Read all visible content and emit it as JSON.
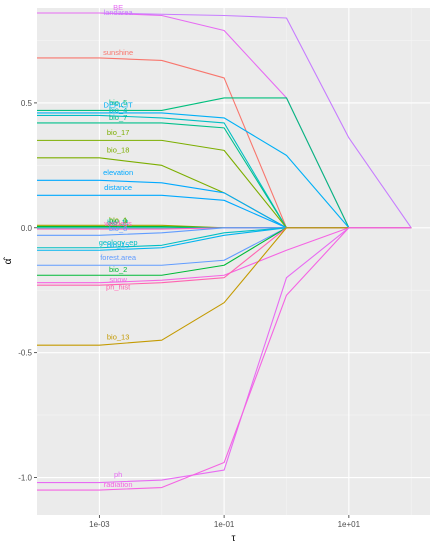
{
  "chart_data": {
    "type": "line",
    "xlabel": "τ",
    "ylabel": "α̂",
    "x_scale": "log10",
    "xlim": [
      0.0001,
      200
    ],
    "ylim": [
      -1.15,
      0.88
    ],
    "grid": true,
    "legend": "none",
    "x": [
      0.0001,
      0.001,
      0.01,
      0.1,
      1,
      10,
      100
    ],
    "x_ticks": [
      {
        "value": 0.001,
        "label": "1e-03"
      },
      {
        "value": 0.1,
        "label": "1e-01"
      },
      {
        "value": 10,
        "label": "1e+01"
      }
    ],
    "y_ticks": [
      {
        "value": 0.5,
        "label": "0.5"
      },
      {
        "value": 0.0,
        "label": "0.0"
      },
      {
        "value": -0.5,
        "label": "-0.5"
      },
      {
        "value": -1.0,
        "label": "-1.0"
      }
    ],
    "series": [
      {
        "name": "landarea",
        "color": "#C77CFF",
        "label_x": 0.002,
        "label_y": 0.86,
        "values": [
          0.86,
          0.86,
          0.855,
          0.85,
          0.84,
          0.36,
          0.0
        ]
      },
      {
        "name": "BE",
        "color": "#E76BF3",
        "label_x": 0.002,
        "label_y": 0.88,
        "values": [
          0.86,
          0.86,
          0.85,
          0.79,
          0.52,
          0.0,
          0.0
        ]
      },
      {
        "name": "sunshine",
        "color": "#F8766D",
        "label_x": 0.002,
        "label_y": 0.7,
        "values": [
          0.68,
          0.68,
          0.67,
          0.6,
          0.0,
          0.0,
          0.0
        ]
      },
      {
        "name": "bio_5",
        "color": "#00BF7D",
        "label_x": 0.002,
        "label_y": 0.5,
        "values": [
          0.47,
          0.47,
          0.47,
          0.52,
          0.52,
          0.0,
          0.0
        ]
      },
      {
        "name": "DEFICIT",
        "color": "#00B0F6",
        "label_x": 0.002,
        "label_y": 0.49,
        "values": [
          0.46,
          0.46,
          0.46,
          0.44,
          0.29,
          0.0,
          0.0
        ]
      },
      {
        "name": "bio_4",
        "color": "#00BFC4",
        "label_x": 0.002,
        "label_y": 0.47,
        "values": [
          0.45,
          0.45,
          0.44,
          0.42,
          0.0,
          0.0,
          0.0
        ]
      },
      {
        "name": "bio_7",
        "color": "#00C08B",
        "label_x": 0.002,
        "label_y": 0.44,
        "values": [
          0.42,
          0.42,
          0.42,
          0.4,
          0.0,
          0.0,
          0.0
        ]
      },
      {
        "name": "bio_17",
        "color": "#7CAE00",
        "label_x": 0.002,
        "label_y": 0.38,
        "values": [
          0.35,
          0.35,
          0.35,
          0.31,
          0.0,
          0.0,
          0.0
        ]
      },
      {
        "name": "bio_18",
        "color": "#7CAE00",
        "label_x": 0.002,
        "label_y": 0.31,
        "values": [
          0.28,
          0.28,
          0.25,
          0.14,
          0.0,
          0.0,
          0.0
        ]
      },
      {
        "name": "elevation",
        "color": "#00A9FF",
        "label_x": 0.002,
        "label_y": 0.22,
        "values": [
          0.19,
          0.19,
          0.18,
          0.14,
          0.0,
          0.0,
          0.0
        ]
      },
      {
        "name": "distance",
        "color": "#00A9FF",
        "label_x": 0.002,
        "label_y": 0.16,
        "values": [
          0.13,
          0.13,
          0.13,
          0.11,
          0.0,
          0.0,
          0.0
        ]
      },
      {
        "name": "bio_1",
        "color": "#A3A500",
        "label_x": 0.002,
        "label_y": 0.03,
        "values": [
          0.01,
          0.01,
          0.01,
          0.0,
          0.0,
          0.0,
          0.0
        ]
      },
      {
        "name": "bio_9",
        "color": "#00BA38",
        "label_x": 0.002,
        "label_y": 0.025,
        "values": [
          0.005,
          0.005,
          0.005,
          0.0,
          0.0,
          0.0,
          0.0
        ]
      },
      {
        "name": "bio_11",
        "color": "#00C1A3",
        "label_x": 0.002,
        "label_y": 0.02,
        "values": [
          0.0,
          0.0,
          0.0,
          0.0,
          0.0,
          0.0,
          0.0
        ]
      },
      {
        "name": "wetdays",
        "color": "#FF61C3",
        "label_x": 0.002,
        "label_y": 0.015,
        "values": [
          -0.005,
          -0.005,
          -0.005,
          0.0,
          0.0,
          0.0,
          0.0
        ]
      },
      {
        "name": "bio_8",
        "color": "#619CFF",
        "label_x": 0.002,
        "label_y": -0.005,
        "values": [
          -0.03,
          -0.03,
          -0.02,
          0.0,
          0.0,
          0.0,
          0.0
        ]
      },
      {
        "name": "geology_ep",
        "color": "#00BFC4",
        "label_x": 0.002,
        "label_y": -0.06,
        "values": [
          -0.08,
          -0.08,
          -0.07,
          -0.02,
          0.0,
          0.0,
          0.0
        ]
      },
      {
        "name": "bio_15",
        "color": "#00B4F0",
        "label_x": 0.002,
        "label_y": -0.07,
        "values": [
          -0.09,
          -0.09,
          -0.08,
          -0.03,
          0.0,
          0.0,
          0.0
        ]
      },
      {
        "name": "forest.area",
        "color": "#619CFF",
        "label_x": 0.002,
        "label_y": -0.12,
        "values": [
          -0.15,
          -0.15,
          -0.15,
          -0.13,
          0.0,
          0.0,
          0.0
        ]
      },
      {
        "name": "bio_2",
        "color": "#00BA38",
        "label_x": 0.002,
        "label_y": -0.17,
        "values": [
          -0.19,
          -0.19,
          -0.19,
          -0.15,
          0.0,
          0.0,
          0.0
        ]
      },
      {
        "name": "snow",
        "color": "#F564E3",
        "label_x": 0.002,
        "label_y": -0.21,
        "values": [
          -0.22,
          -0.22,
          -0.21,
          -0.19,
          -0.09,
          0.0,
          0.0
        ]
      },
      {
        "name": "ph_hist",
        "color": "#FF64B0",
        "label_x": 0.002,
        "label_y": -0.24,
        "values": [
          -0.23,
          -0.23,
          -0.22,
          -0.2,
          0.0,
          0.0,
          0.0
        ]
      },
      {
        "name": "bio_13",
        "color": "#C49A00",
        "label_x": 0.002,
        "label_y": -0.44,
        "values": [
          -0.47,
          -0.47,
          -0.45,
          -0.3,
          0.0,
          0.0,
          0.0
        ]
      },
      {
        "name": "ph",
        "color": "#E76BF3",
        "label_x": 0.002,
        "label_y": -0.99,
        "values": [
          -1.02,
          -1.02,
          -1.01,
          -0.97,
          -0.2,
          0.0,
          0.0
        ]
      },
      {
        "name": "radiation",
        "color": "#F564E3",
        "label_x": 0.002,
        "label_y": -1.03,
        "values": [
          -1.05,
          -1.05,
          -1.04,
          -0.94,
          -0.27,
          0.0,
          0.0
        ]
      }
    ]
  }
}
